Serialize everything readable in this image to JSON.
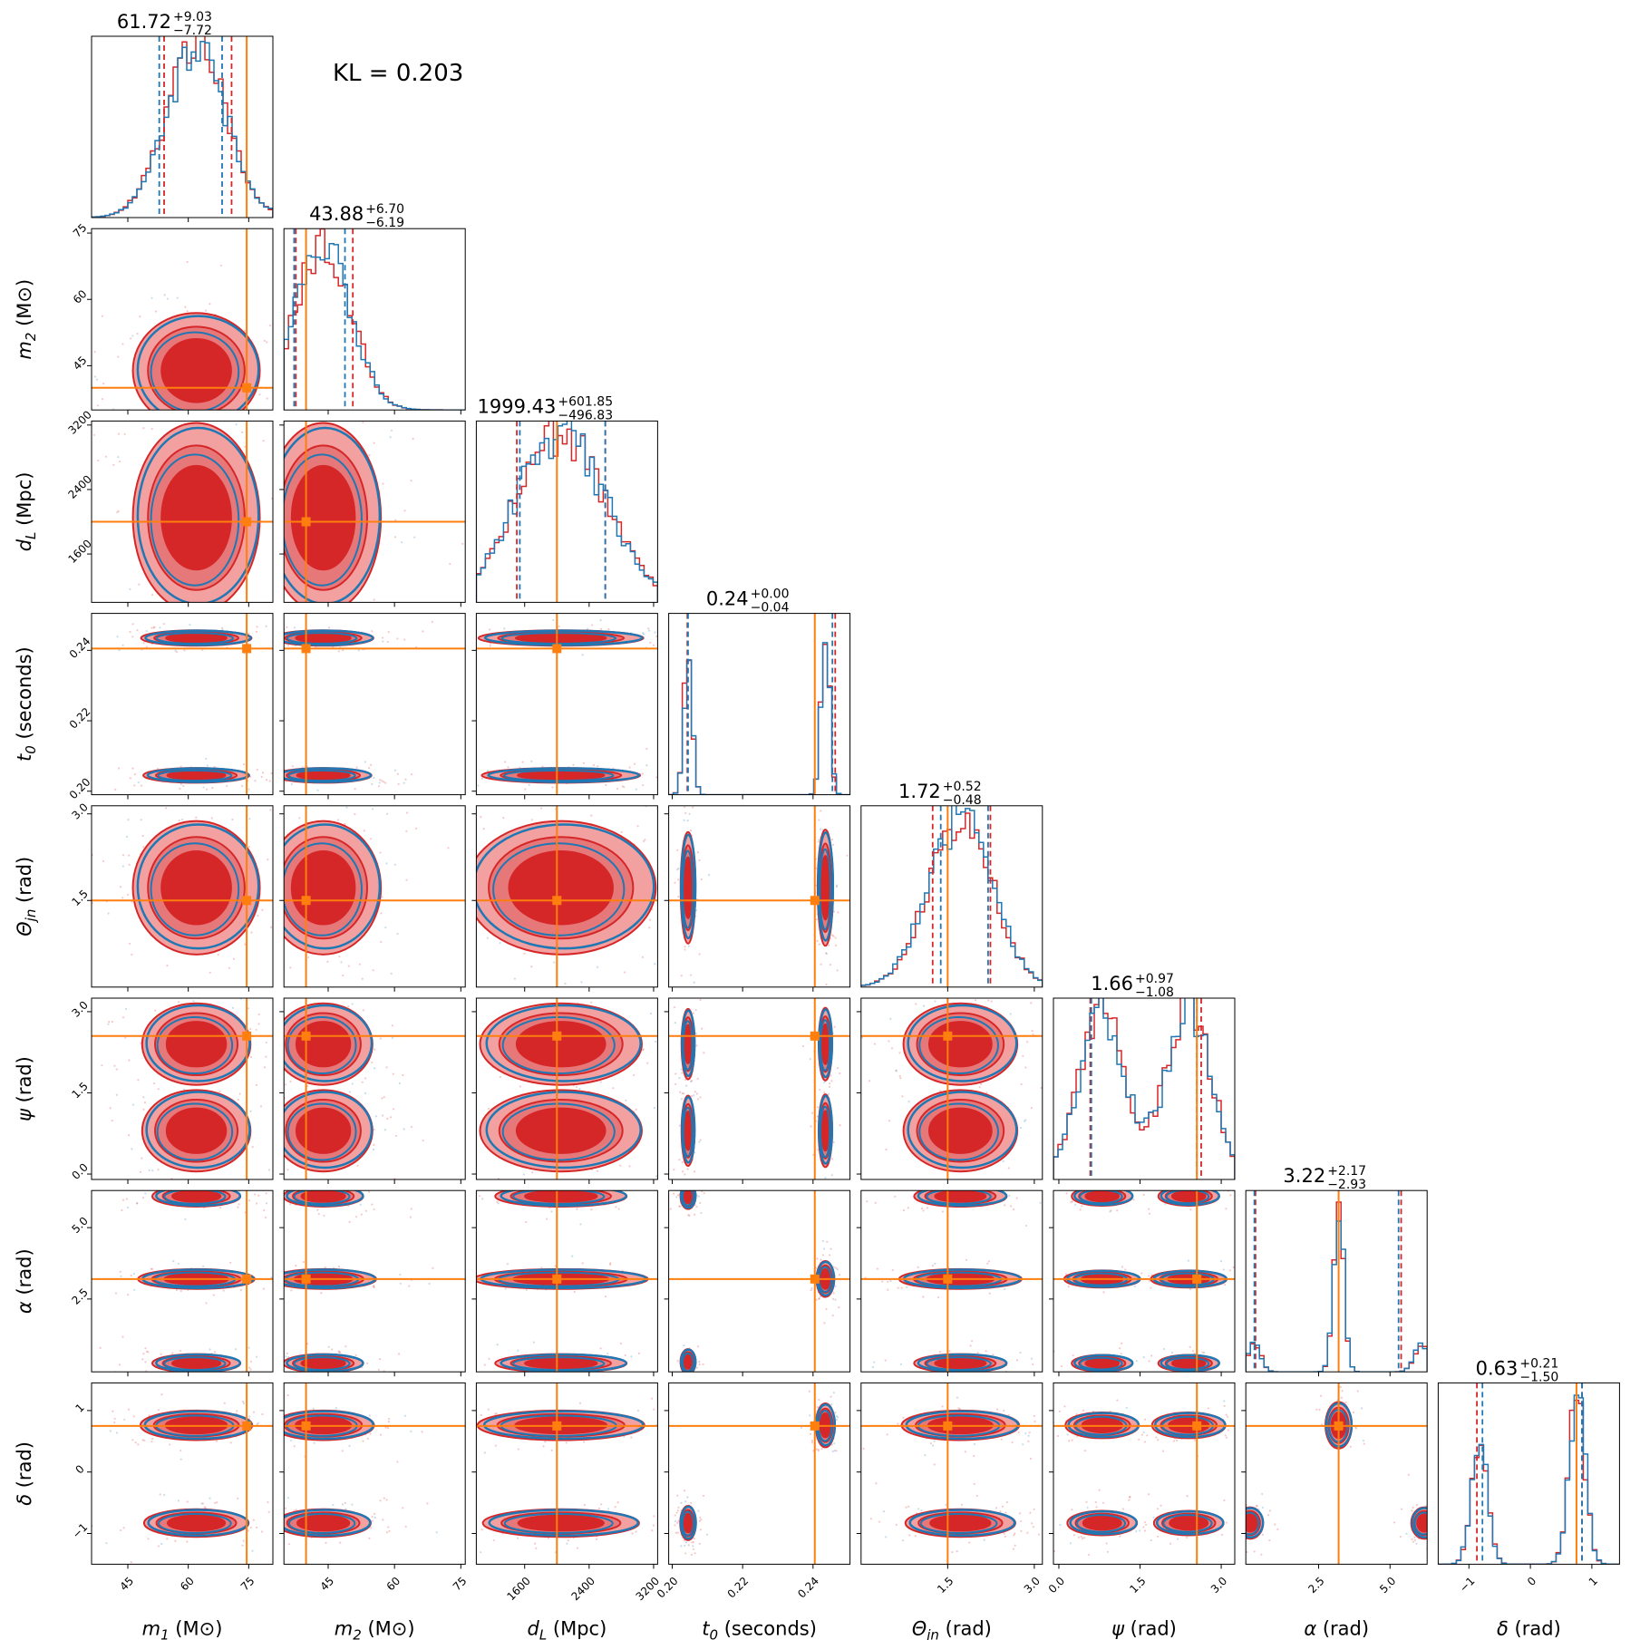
{
  "kl_text": "KL = 0.203",
  "colors": {
    "truth": "#ff7f0e",
    "red": "#d62728",
    "red_light": "#f2a0a0",
    "blue": "#1f77b4"
  },
  "chart_data": {
    "type": "corner",
    "legend": "",
    "parameters": [
      {
        "name": "m1",
        "label_main": "m",
        "label_sub": "1",
        "label_unit": " (M⊙)",
        "range": [
          36,
          81
        ],
        "ticks": [
          45,
          60,
          75
        ],
        "tick_labels": [
          "45",
          "60",
          "75"
        ],
        "truth": 74.5,
        "title_value": "61.72",
        "title_plus": "+9.03",
        "title_minus": "−7.72",
        "red_quantiles": [
          54.0,
          61.72,
          70.75
        ],
        "blue_quantiles": [
          52.8,
          61.0,
          68.4
        ]
      },
      {
        "name": "m2",
        "label_main": "m",
        "label_sub": "2",
        "label_unit": " (M⊙)",
        "range": [
          35,
          76
        ],
        "ticks": [
          45,
          60,
          75
        ],
        "tick_labels": [
          "45",
          "60",
          "75"
        ],
        "truth": 40,
        "title_value": "43.88",
        "title_plus": "+6.70",
        "title_minus": "−6.19",
        "red_quantiles": [
          37.69,
          43.88,
          50.58
        ],
        "blue_quantiles": [
          37.3,
          43.5,
          48.8
        ]
      },
      {
        "name": "dL",
        "label_main": "d",
        "label_sub": "L",
        "label_unit": " (Mpc)",
        "range": [
          1000,
          3250
        ],
        "ticks": [
          1600,
          2400,
          3200
        ],
        "tick_labels": [
          "1600",
          "2400",
          "3200"
        ],
        "truth": 2000,
        "title_value": "1999.43",
        "title_plus": "+601.85",
        "title_minus": "−496.83",
        "red_quantiles": [
          1502.6,
          1999.43,
          2601.28
        ],
        "blue_quantiles": [
          1540,
          2000,
          2600
        ]
      },
      {
        "name": "t0",
        "label_main": "t",
        "label_sub": "0",
        "label_unit": " (seconds)",
        "range": [
          0.199,
          0.2505
        ],
        "ticks": [
          0.2,
          0.22,
          0.24
        ],
        "tick_labels": [
          "0.20",
          "0.22",
          "0.24"
        ],
        "truth": 0.2405,
        "title_value": "0.24",
        "title_plus": "+0.00",
        "title_minus": "−0.04",
        "red_quantiles": [
          0.2043,
          0.2433,
          0.2463
        ],
        "blue_quantiles": [
          0.2045,
          0.2433,
          0.2455
        ]
      },
      {
        "name": "theta_jn",
        "label_main": "Θ",
        "label_sub": "jn",
        "label_unit": " (rad)",
        "range": [
          0.0,
          3.14
        ],
        "ticks": [
          1.5,
          3.0
        ],
        "tick_labels": [
          "1.5",
          "3.0"
        ],
        "truth": 1.5,
        "title_value": "1.72",
        "title_plus": "+0.52",
        "title_minus": "−0.48",
        "red_quantiles": [
          1.24,
          1.72,
          2.24
        ],
        "blue_quantiles": [
          1.38,
          1.74,
          2.2
        ]
      },
      {
        "name": "psi",
        "label_main": "ψ",
        "label_sub": "",
        "label_unit": " (rad)",
        "range": [
          -0.1,
          3.25
        ],
        "ticks": [
          0.0,
          1.5,
          3.0
        ],
        "tick_labels": [
          "0.0",
          "1.5",
          "3.0"
        ],
        "truth": 2.55,
        "title_value": "1.66",
        "title_plus": "+0.97",
        "title_minus": "−1.08",
        "red_quantiles": [
          0.58,
          1.66,
          2.63
        ],
        "blue_quantiles": [
          0.6,
          1.7,
          2.55
        ]
      },
      {
        "name": "alpha",
        "label_main": "α",
        "label_sub": "",
        "label_unit": " (rad)",
        "range": [
          -0.05,
          6.3
        ],
        "ticks": [
          2.5,
          5.0
        ],
        "tick_labels": [
          "2.5",
          "5.0"
        ],
        "truth": 3.2,
        "title_value": "3.22",
        "title_plus": "+2.17",
        "title_minus": "−2.93",
        "red_quantiles": [
          0.29,
          3.22,
          5.39
        ],
        "blue_quantiles": [
          0.25,
          3.3,
          5.3
        ]
      },
      {
        "name": "delta",
        "label_main": "δ",
        "label_sub": "",
        "label_unit": " (rad)",
        "range": [
          -1.5,
          1.45
        ],
        "ticks": [
          -1,
          0,
          1
        ],
        "tick_labels": [
          "−1",
          "0",
          "1"
        ],
        "truth": 0.75,
        "title_value": "0.63",
        "title_plus": "+0.21",
        "title_minus": "−1.50",
        "red_quantiles": [
          -0.87,
          0.63,
          0.84
        ],
        "blue_quantiles": [
          -0.78,
          0.7,
          0.84
        ]
      }
    ],
    "extra_y_ticks": {
      "alpha": {
        "ticks": [
          2.5,
          5.0,
          6.0
        ],
        "tick_labels": [
          "2.5",
          "5.0",
          "6.0"
        ]
      }
    }
  }
}
